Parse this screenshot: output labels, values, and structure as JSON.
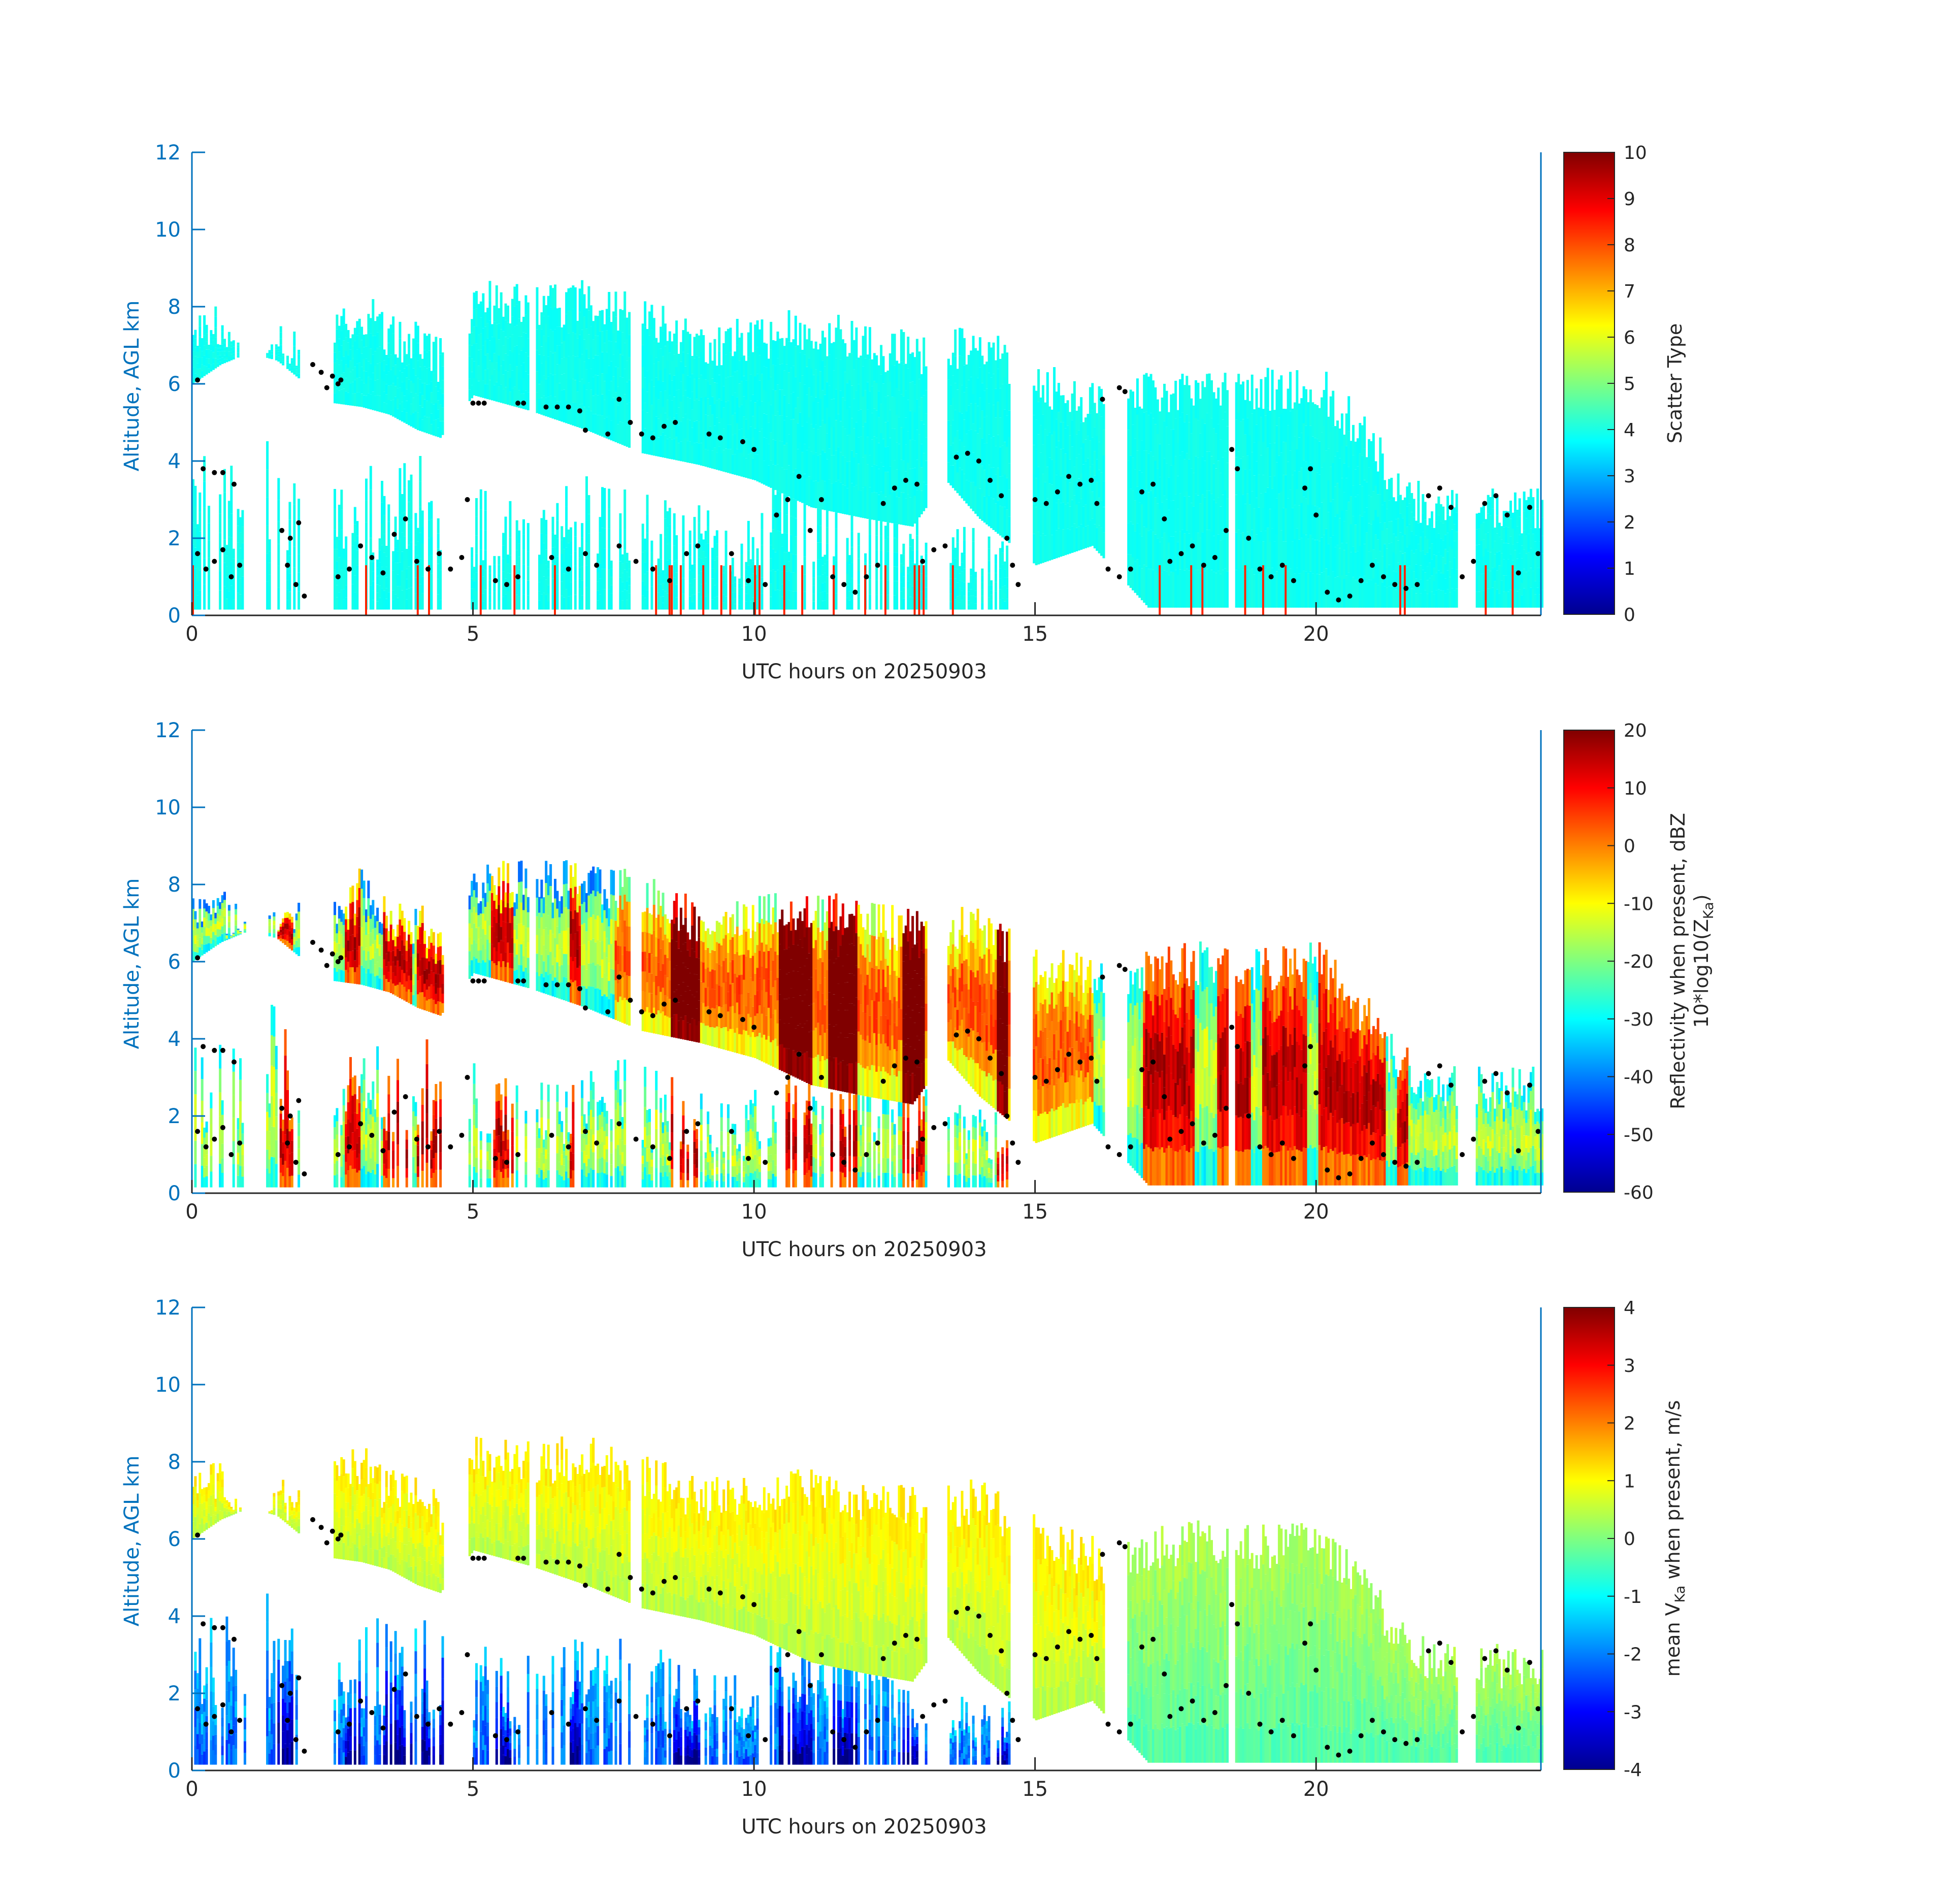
{
  "figure": {
    "background": "#ffffff"
  },
  "chart_data": [
    {
      "type": "heatmap",
      "title": "",
      "xlabel": "UTC hours on 20250903",
      "ylabel": "Altitude, AGL km",
      "xlim": [
        0,
        24
      ],
      "ylim": [
        0,
        12
      ],
      "xticks": [
        0,
        5,
        10,
        15,
        20
      ],
      "yticks": [
        0,
        2,
        4,
        6,
        8,
        10,
        12
      ],
      "colorbar": {
        "label": "Scatter Type",
        "label2": "",
        "range": [
          0,
          10
        ],
        "ticks": [
          0,
          1,
          2,
          3,
          4,
          5,
          6,
          7,
          8,
          9,
          10
        ]
      },
      "colormap": "jet",
      "field": "scatter_type",
      "dominant_value": 4
    },
    {
      "type": "heatmap",
      "title": "",
      "xlabel": "UTC hours on 20250903",
      "ylabel": "Altitude, AGL km",
      "xlim": [
        0,
        24
      ],
      "ylim": [
        0,
        12
      ],
      "xticks": [
        0,
        5,
        10,
        15,
        20
      ],
      "yticks": [
        0,
        2,
        4,
        6,
        8,
        10,
        12
      ],
      "colorbar": {
        "label": "Reflectivity when present, dBZ",
        "label2": "10*log10(Z",
        "label2_sub": "Ka",
        "label2_end": ")",
        "range": [
          -60,
          20
        ],
        "ticks": [
          -60,
          -50,
          -40,
          -30,
          -20,
          -10,
          0,
          10,
          20
        ]
      },
      "colormap": "jet",
      "field": "reflectivity"
    },
    {
      "type": "heatmap",
      "title": "",
      "xlabel": "UTC hours on 20250903",
      "ylabel": "Altitude, AGL km",
      "xlim": [
        0,
        24
      ],
      "ylim": [
        0,
        12
      ],
      "xticks": [
        0,
        5,
        10,
        15,
        20
      ],
      "yticks": [
        0,
        2,
        4,
        6,
        8,
        10,
        12
      ],
      "colorbar": {
        "label": "mean V",
        "label_sub": "Ka",
        "label_end": " when present, m/s",
        "label2": "",
        "range": [
          -4,
          4
        ],
        "ticks": [
          -4,
          -3,
          -2,
          -1,
          0,
          1,
          2,
          3,
          4
        ]
      },
      "colormap": "jet",
      "field": "velocity"
    }
  ],
  "cloud_echo": {
    "upper_top_km": [
      [
        0,
        8.1
      ],
      [
        0.5,
        8.1
      ],
      [
        1,
        7.0
      ],
      [
        1.5,
        7.6
      ],
      [
        2,
        7.7
      ],
      [
        2.5,
        8.0
      ],
      [
        3,
        8.5
      ],
      [
        3.5,
        7.8
      ],
      [
        4,
        7.6
      ],
      [
        4.4,
        7.2
      ],
      [
        5,
        8.7
      ],
      [
        6,
        8.6
      ],
      [
        7,
        8.7
      ],
      [
        8,
        8.3
      ],
      [
        9,
        7.6
      ],
      [
        10,
        7.8
      ],
      [
        11,
        8.0
      ],
      [
        12,
        7.6
      ],
      [
        13,
        7.3
      ],
      [
        14,
        7.6
      ],
      [
        15,
        6.6
      ],
      [
        15.6,
        6.3
      ],
      [
        16.2,
        6.0
      ],
      [
        17,
        6.3
      ],
      [
        18,
        6.6
      ],
      [
        19,
        6.4
      ],
      [
        20,
        6.6
      ],
      [
        21,
        5.0
      ],
      [
        21.4,
        4.0
      ],
      [
        22,
        3.4
      ],
      [
        23,
        3.3
      ],
      [
        24,
        3.3
      ]
    ],
    "upper_base_km": [
      [
        0,
        6.0
      ],
      [
        0.5,
        6.5
      ],
      [
        1,
        6.8
      ],
      [
        1.5,
        6.6
      ],
      [
        2,
        6.0
      ],
      [
        2.5,
        5.5
      ],
      [
        3,
        5.4
      ],
      [
        3.5,
        5.2
      ],
      [
        4,
        4.8
      ],
      [
        4.4,
        4.6
      ],
      [
        5,
        5.7
      ],
      [
        6,
        5.3
      ],
      [
        7,
        4.8
      ],
      [
        8,
        4.2
      ],
      [
        9,
        3.9
      ],
      [
        10,
        3.5
      ],
      [
        11,
        2.8
      ],
      [
        12,
        2.5
      ],
      [
        12.8,
        2.3
      ],
      [
        13.4,
        3.5
      ],
      [
        14,
        2.5
      ],
      [
        15,
        1.3
      ],
      [
        16,
        1.8
      ],
      [
        17,
        0.2
      ],
      [
        24,
        0.2
      ]
    ],
    "near_surface_tops_km": [
      [
        0,
        4.0
      ],
      [
        0.9,
        3.5
      ],
      [
        1.5,
        4.8
      ],
      [
        2,
        2.5
      ],
      [
        3,
        3.5
      ],
      [
        4,
        3.8
      ],
      [
        4.8,
        3.2
      ],
      [
        5.6,
        2.8
      ],
      [
        6.5,
        3.0
      ],
      [
        7.3,
        3.5
      ],
      [
        8,
        3.0
      ],
      [
        9,
        2.6
      ],
      [
        9.8,
        2.2
      ],
      [
        10.6,
        3.6
      ],
      [
        11,
        3.4
      ],
      [
        12,
        3.8
      ],
      [
        13,
        2.5
      ],
      [
        14,
        2.0
      ],
      [
        14.6,
        1.8
      ]
    ],
    "clear_gaps_hours": [
      [
        0.95,
        1.3
      ],
      [
        1.9,
        2.5
      ],
      [
        4.45,
        4.9
      ],
      [
        6.0,
        6.1
      ],
      [
        7.8,
        8.0
      ],
      [
        13.05,
        13.4
      ],
      [
        14.55,
        14.95
      ],
      [
        16.2,
        16.6
      ],
      [
        18.4,
        18.55
      ],
      [
        22.5,
        22.8
      ]
    ],
    "convective_cores_hours": [
      [
        1.5,
        1.8
      ],
      [
        2.7,
        3.0
      ],
      [
        3.4,
        3.9
      ],
      [
        4.0,
        4.8
      ],
      [
        5.3,
        5.7
      ],
      [
        6.7,
        6.9
      ],
      [
        8.5,
        9.0
      ],
      [
        10.4,
        11.0
      ],
      [
        11.3,
        11.8
      ],
      [
        12.6,
        13.0
      ],
      [
        14.3,
        14.5
      ],
      [
        16.9,
        17.8
      ],
      [
        18.2,
        18.8
      ],
      [
        19.0,
        19.8
      ],
      [
        20.0,
        21.2
      ],
      [
        21.4,
        21.6
      ]
    ]
  },
  "markers": {
    "color": "#000000",
    "points": [
      [
        0.1,
        6.1
      ],
      [
        0.2,
        3.8
      ],
      [
        0.4,
        3.7
      ],
      [
        0.55,
        3.7
      ],
      [
        0.75,
        3.4
      ],
      [
        0.1,
        1.6
      ],
      [
        0.25,
        1.2
      ],
      [
        0.4,
        1.4
      ],
      [
        0.55,
        1.7
      ],
      [
        0.7,
        1.0
      ],
      [
        0.85,
        1.3
      ],
      [
        1.6,
        2.2
      ],
      [
        1.75,
        2.0
      ],
      [
        1.9,
        2.4
      ],
      [
        1.7,
        1.3
      ],
      [
        1.85,
        0.8
      ],
      [
        2.0,
        0.5
      ],
      [
        2.15,
        6.5
      ],
      [
        2.3,
        6.3
      ],
      [
        2.5,
        6.2
      ],
      [
        2.65,
        6.1
      ],
      [
        2.4,
        5.9
      ],
      [
        2.6,
        6.0
      ],
      [
        2.6,
        1.0
      ],
      [
        2.8,
        1.2
      ],
      [
        3.0,
        1.8
      ],
      [
        3.2,
        1.5
      ],
      [
        3.4,
        1.1
      ],
      [
        3.6,
        2.1
      ],
      [
        3.8,
        2.5
      ],
      [
        4.0,
        1.4
      ],
      [
        4.2,
        1.2
      ],
      [
        4.4,
        1.6
      ],
      [
        4.6,
        1.2
      ],
      [
        4.8,
        1.5
      ],
      [
        4.9,
        3.0
      ],
      [
        5.0,
        5.5
      ],
      [
        5.1,
        5.5
      ],
      [
        5.2,
        5.5
      ],
      [
        5.4,
        0.9
      ],
      [
        5.6,
        0.8
      ],
      [
        5.8,
        1.0
      ],
      [
        5.8,
        5.5
      ],
      [
        5.9,
        5.5
      ],
      [
        6.3,
        5.4
      ],
      [
        6.5,
        5.4
      ],
      [
        6.7,
        5.4
      ],
      [
        6.9,
        5.3
      ],
      [
        6.4,
        1.5
      ],
      [
        6.7,
        1.2
      ],
      [
        7.0,
        1.6
      ],
      [
        7.2,
        1.3
      ],
      [
        7.0,
        4.8
      ],
      [
        7.4,
        4.7
      ],
      [
        7.6,
        5.6
      ],
      [
        7.8,
        5.0
      ],
      [
        8.0,
        4.7
      ],
      [
        8.2,
        4.6
      ],
      [
        8.4,
        4.9
      ],
      [
        8.6,
        5.0
      ],
      [
        7.6,
        1.8
      ],
      [
        7.9,
        1.4
      ],
      [
        8.2,
        1.2
      ],
      [
        8.5,
        0.9
      ],
      [
        8.8,
        1.6
      ],
      [
        9.0,
        1.8
      ],
      [
        9.2,
        4.7
      ],
      [
        9.4,
        4.6
      ],
      [
        9.8,
        4.5
      ],
      [
        10.0,
        4.3
      ],
      [
        9.6,
        1.6
      ],
      [
        9.9,
        0.9
      ],
      [
        10.2,
        0.8
      ],
      [
        10.4,
        2.6
      ],
      [
        10.6,
        3.0
      ],
      [
        10.8,
        3.6
      ],
      [
        11.0,
        2.2
      ],
      [
        11.2,
        3.0
      ],
      [
        11.4,
        1.0
      ],
      [
        11.6,
        0.8
      ],
      [
        11.8,
        0.6
      ],
      [
        12.0,
        1.0
      ],
      [
        12.2,
        1.3
      ],
      [
        12.3,
        2.9
      ],
      [
        12.5,
        3.3
      ],
      [
        12.7,
        3.5
      ],
      [
        12.9,
        3.4
      ],
      [
        13.0,
        1.4
      ],
      [
        13.2,
        1.7
      ],
      [
        13.4,
        1.8
      ],
      [
        13.6,
        4.1
      ],
      [
        13.8,
        4.2
      ],
      [
        14.0,
        4.0
      ],
      [
        14.2,
        3.5
      ],
      [
        14.4,
        3.1
      ],
      [
        14.5,
        2.0
      ],
      [
        14.6,
        1.3
      ],
      [
        14.7,
        0.8
      ],
      [
        15.0,
        3.0
      ],
      [
        15.2,
        2.9
      ],
      [
        15.4,
        3.2
      ],
      [
        15.6,
        3.6
      ],
      [
        15.8,
        3.4
      ],
      [
        16.0,
        3.5
      ],
      [
        16.1,
        2.9
      ],
      [
        16.2,
        5.6
      ],
      [
        16.5,
        5.9
      ],
      [
        16.6,
        5.8
      ],
      [
        16.3,
        1.2
      ],
      [
        16.5,
        1.0
      ],
      [
        16.7,
        1.2
      ],
      [
        16.9,
        3.2
      ],
      [
        17.1,
        3.4
      ],
      [
        17.3,
        2.5
      ],
      [
        17.4,
        1.4
      ],
      [
        17.6,
        1.6
      ],
      [
        17.8,
        1.8
      ],
      [
        18.0,
        1.3
      ],
      [
        18.2,
        1.5
      ],
      [
        18.4,
        2.2
      ],
      [
        18.5,
        4.3
      ],
      [
        18.6,
        3.8
      ],
      [
        18.8,
        2.0
      ],
      [
        19.0,
        1.2
      ],
      [
        19.2,
        1.0
      ],
      [
        19.4,
        1.3
      ],
      [
        19.6,
        0.9
      ],
      [
        19.8,
        3.3
      ],
      [
        19.9,
        3.8
      ],
      [
        20.0,
        2.6
      ],
      [
        20.2,
        0.6
      ],
      [
        20.4,
        0.4
      ],
      [
        20.6,
        0.5
      ],
      [
        20.8,
        0.9
      ],
      [
        21.0,
        1.3
      ],
      [
        21.2,
        1.0
      ],
      [
        21.4,
        0.8
      ],
      [
        21.6,
        0.7
      ],
      [
        21.8,
        0.8
      ],
      [
        22.0,
        3.1
      ],
      [
        22.2,
        3.3
      ],
      [
        22.4,
        2.8
      ],
      [
        22.6,
        1.0
      ],
      [
        22.8,
        1.4
      ],
      [
        23.0,
        2.9
      ],
      [
        23.2,
        3.1
      ],
      [
        23.4,
        2.6
      ],
      [
        23.6,
        1.1
      ],
      [
        23.8,
        2.8
      ],
      [
        23.95,
        1.6
      ]
    ]
  }
}
